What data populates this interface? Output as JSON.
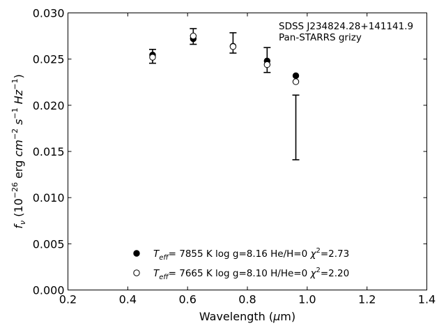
{
  "chart_data": {
    "type": "scatter",
    "xlabel": "Wavelength (μm)",
    "ylabel": "f_ν (10^-26 erg cm^-2 s^-1 Hz^-1)",
    "xlim": [
      0.2,
      1.4
    ],
    "ylim": [
      0.0,
      0.03
    ],
    "xticks": [
      "0.2",
      "0.4",
      "0.6",
      "0.8",
      "1.0",
      "1.2",
      "1.4"
    ],
    "yticks": [
      "0.000",
      "0.005",
      "0.010",
      "0.015",
      "0.020",
      "0.025",
      "0.030"
    ],
    "grid": false,
    "annotation": [
      "SDSS J234824.28+141141.9",
      "Pan-STARRS grizy"
    ],
    "observed": {
      "x": [
        0.483,
        0.619,
        0.752,
        0.866,
        0.962
      ],
      "y": [
        0.0253,
        0.02745,
        0.02675,
        0.0249,
        0.0176
      ],
      "yerr": [
        0.00075,
        0.00085,
        0.0011,
        0.00135,
        0.0035
      ]
    },
    "series": [
      {
        "name": "T_eff=  7855 K  log g=8.16  He/H=0  χ²=2.73",
        "marker": "filled-circle",
        "x": [
          0.483,
          0.619,
          0.752,
          0.866,
          0.962
        ],
        "y": [
          0.02545,
          0.0272,
          0.0264,
          0.0248,
          0.0232
        ]
      },
      {
        "name": "T_eff=  7665 K  log g=8.10  H/He=0  χ²=2.20",
        "marker": "open-circle",
        "x": [
          0.483,
          0.619,
          0.752,
          0.866,
          0.962
        ],
        "y": [
          0.0252,
          0.0275,
          0.02635,
          0.0244,
          0.02255
        ]
      }
    ],
    "legend_placement": "bottom-center"
  }
}
